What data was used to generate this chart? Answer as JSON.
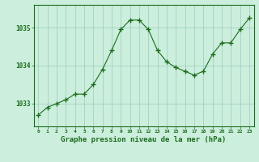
{
  "x": [
    0,
    1,
    2,
    3,
    4,
    5,
    6,
    7,
    8,
    9,
    10,
    11,
    12,
    13,
    14,
    15,
    16,
    17,
    18,
    19,
    20,
    21,
    22,
    23
  ],
  "y": [
    1032.7,
    1032.9,
    1033.0,
    1033.1,
    1033.25,
    1033.25,
    1033.5,
    1033.9,
    1034.4,
    1034.95,
    1035.2,
    1035.2,
    1034.95,
    1034.4,
    1034.1,
    1033.95,
    1033.85,
    1033.75,
    1033.85,
    1034.3,
    1034.6,
    1034.6,
    1034.95,
    1035.25
  ],
  "line_color": "#1a6e1a",
  "marker": "+",
  "bg_color": "#cceedd",
  "grid_color": "#99ccbb",
  "xlabel": "Graphe pression niveau de la mer (hPa)",
  "xlabel_color": "#1a6e1a",
  "tick_color": "#1a6e1a",
  "ylabel_ticks": [
    1033,
    1034,
    1035
  ],
  "ylim": [
    1032.4,
    1035.6
  ],
  "xlim": [
    -0.5,
    23.5
  ],
  "figsize": [
    3.2,
    2.0
  ],
  "dpi": 100
}
